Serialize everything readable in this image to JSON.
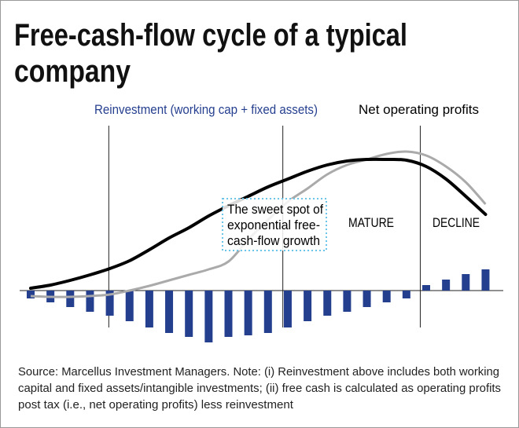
{
  "title_lines": [
    "Free-cash-flow cycle of a typical",
    "company"
  ],
  "legend": {
    "reinvestment": "Reinvestment  (working cap + fixed assets)",
    "nop": "Net operating profits"
  },
  "annotations": {
    "sweet_spot": [
      "The sweet spot of",
      "exponential free-",
      "cash-flow growth"
    ],
    "mature": "MATURE",
    "decline": "DECLINE"
  },
  "source_lines": [
    "Source: Marcellus Investment Managers. Note: (i) Reinvestment above includes both working",
    "capital and fixed assets/intangible investments; (ii) free cash is calculated as operating profits",
    "post tax (i.e., net operating profits) less reinvestment"
  ],
  "colors": {
    "bars": "#253f8f",
    "nop": "#000000",
    "free_cash": "#aaaaaa",
    "reinvestment_label": "#253f8f",
    "sweet_spot_border": "#6cc5e8"
  },
  "chart_data": {
    "type": "bar+line",
    "title": "Free-cash-flow cycle of a typical company",
    "x": [
      0,
      1,
      2,
      3,
      4,
      5,
      6,
      7,
      8,
      9,
      10,
      11,
      12,
      13,
      14,
      15,
      16,
      17,
      18,
      19,
      20,
      21,
      22,
      23
    ],
    "phase_boundaries": [
      3.95,
      12.75,
      19.7
    ],
    "series": [
      {
        "name": "Reinvestment  (working cap + fixed assets)",
        "type": "bar",
        "values": [
          -10,
          -15,
          -21,
          -27,
          -32,
          -39,
          -47,
          -54,
          -59,
          -66,
          -59,
          -57,
          -54,
          -47,
          -39,
          -32,
          -27,
          -21,
          -15,
          -10,
          7,
          14,
          21,
          27
        ]
      },
      {
        "name": "Net operating profits",
        "type": "line",
        "values": [
          3,
          7,
          13,
          20,
          28,
          38,
          52,
          67,
          80,
          95,
          108,
          120,
          132,
          142,
          152,
          160,
          165,
          167,
          167,
          166,
          158,
          142,
          120,
          97
        ]
      },
      {
        "type": "line",
        "color": "gray",
        "values": [
          -7,
          -8,
          -8,
          -7,
          -5,
          0,
          6,
          13,
          20,
          27,
          37,
          65,
          90,
          113,
          130,
          148,
          160,
          167,
          174,
          177,
          172,
          158,
          138,
          110
        ]
      }
    ],
    "axes_visible": false,
    "grid": false
  }
}
